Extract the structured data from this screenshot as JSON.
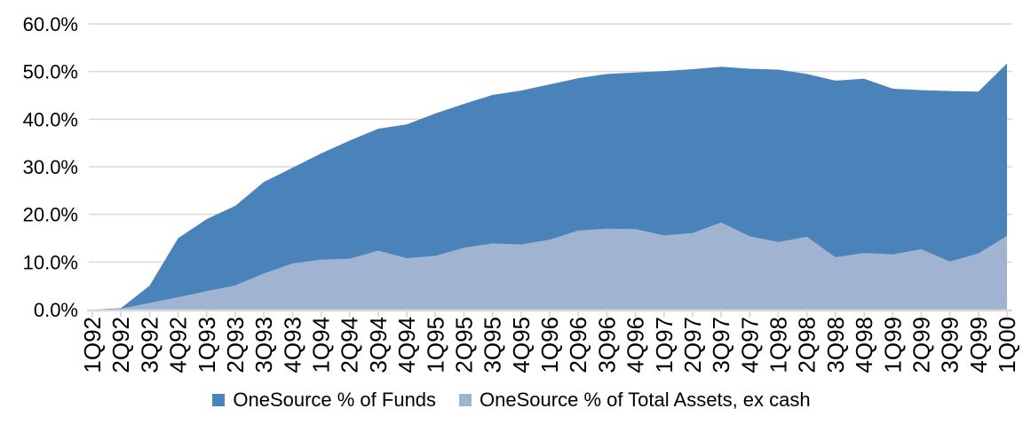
{
  "chart_data": {
    "type": "area",
    "title": "",
    "categories": [
      "1Q92",
      "2Q92",
      "3Q92",
      "4Q92",
      "1Q93",
      "2Q93",
      "3Q93",
      "4Q93",
      "1Q94",
      "2Q94",
      "3Q94",
      "4Q94",
      "1Q95",
      "2Q95",
      "3Q95",
      "4Q95",
      "1Q96",
      "2Q96",
      "3Q96",
      "4Q96",
      "1Q97",
      "2Q97",
      "3Q97",
      "4Q97",
      "1Q98",
      "2Q98",
      "3Q98",
      "4Q98",
      "1Q99",
      "2Q99",
      "3Q99",
      "4Q99",
      "1Q00"
    ],
    "series": [
      {
        "name": "OneSource % of Funds",
        "color": "#4a82ba",
        "values": [
          0,
          0.3,
          5.0,
          15.0,
          19.0,
          21.8,
          26.8,
          29.8,
          32.8,
          35.5,
          38.0,
          38.9,
          41.2,
          43.2,
          45.1,
          46.0,
          47.3,
          48.6,
          49.5,
          49.8,
          50.1,
          50.5,
          51.0,
          50.6,
          50.4,
          49.5,
          48.1,
          48.5,
          46.4,
          46.1,
          45.9,
          45.8,
          51.7
        ]
      },
      {
        "name": "OneSource % of Total Assets, ex cash",
        "color": "#a0b4d2",
        "values": [
          0,
          0.2,
          1.4,
          2.6,
          3.9,
          5.1,
          7.6,
          9.7,
          10.5,
          10.7,
          12.4,
          10.8,
          11.3,
          13.0,
          13.9,
          13.7,
          14.7,
          16.6,
          17.0,
          16.9,
          15.6,
          16.1,
          18.3,
          15.4,
          14.2,
          15.3,
          11.0,
          11.9,
          11.6,
          12.7,
          10.1,
          11.8,
          15.5
        ]
      }
    ],
    "y_axis": {
      "min": 0,
      "max": 60,
      "step": 10,
      "tick_labels": [
        "0.0%",
        "10.0%",
        "20.0%",
        "30.0%",
        "40.0%",
        "50.0%",
        "60.0%"
      ]
    },
    "x_axis": {
      "label_rotation": "up"
    },
    "grid": "horizontal",
    "legend_position": "bottom",
    "colors": {
      "gridline": "#d9d9d9",
      "axis": "#d9d9d9",
      "text": "#000000",
      "background": "#ffffff"
    }
  }
}
